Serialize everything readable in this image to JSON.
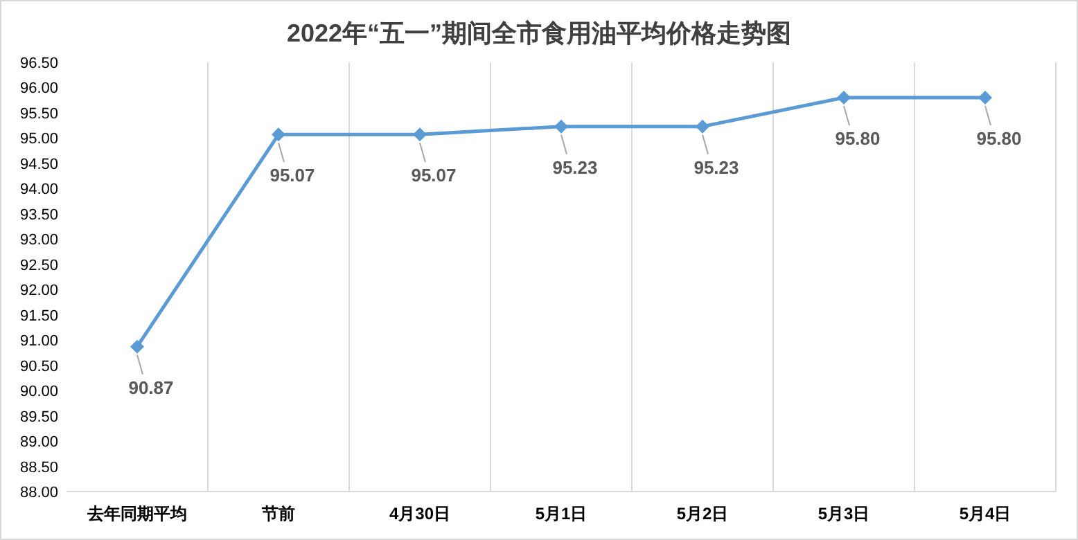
{
  "chart_data": {
    "type": "line",
    "title": "2022年“五一”期间全市食用油平均价格走势图",
    "categories": [
      "去年同期平均",
      "节前",
      "4月30日",
      "5月1日",
      "5月2日",
      "5月3日",
      "5月4日"
    ],
    "series": [
      {
        "color": "#5b9bd5",
        "values": [
          90.87,
          95.07,
          95.07,
          95.23,
          95.23,
          95.8,
          95.8
        ],
        "value_labels": [
          "90.87",
          "95.07",
          "95.07",
          "95.23",
          "95.23",
          "95.80",
          "95.80"
        ]
      }
    ],
    "ylim": [
      88,
      96.5
    ],
    "yticks": [
      {
        "value": 88,
        "label": "88.00"
      },
      {
        "value": 88.5,
        "label": "88.50"
      },
      {
        "value": 89,
        "label": "89.00"
      },
      {
        "value": 89.5,
        "label": "89.50"
      },
      {
        "value": 90,
        "label": "90.00"
      },
      {
        "value": 90.5,
        "label": "90.50"
      },
      {
        "value": 91,
        "label": "91.00"
      },
      {
        "value": 91.5,
        "label": "91.50"
      },
      {
        "value": 92,
        "label": "92.00"
      },
      {
        "value": 92.5,
        "label": "92.50"
      },
      {
        "value": 93,
        "label": "93.00"
      },
      {
        "value": 93.5,
        "label": "93.50"
      },
      {
        "value": 94,
        "label": "94.00"
      },
      {
        "value": 94.5,
        "label": "94.50"
      },
      {
        "value": 95,
        "label": "95.00"
      },
      {
        "value": 95.5,
        "label": "95.50"
      },
      {
        "value": 96,
        "label": "96.00"
      },
      {
        "value": 96.5,
        "label": "96.50"
      }
    ],
    "grid": "x",
    "marker": "diamond",
    "line_style": "solid"
  }
}
